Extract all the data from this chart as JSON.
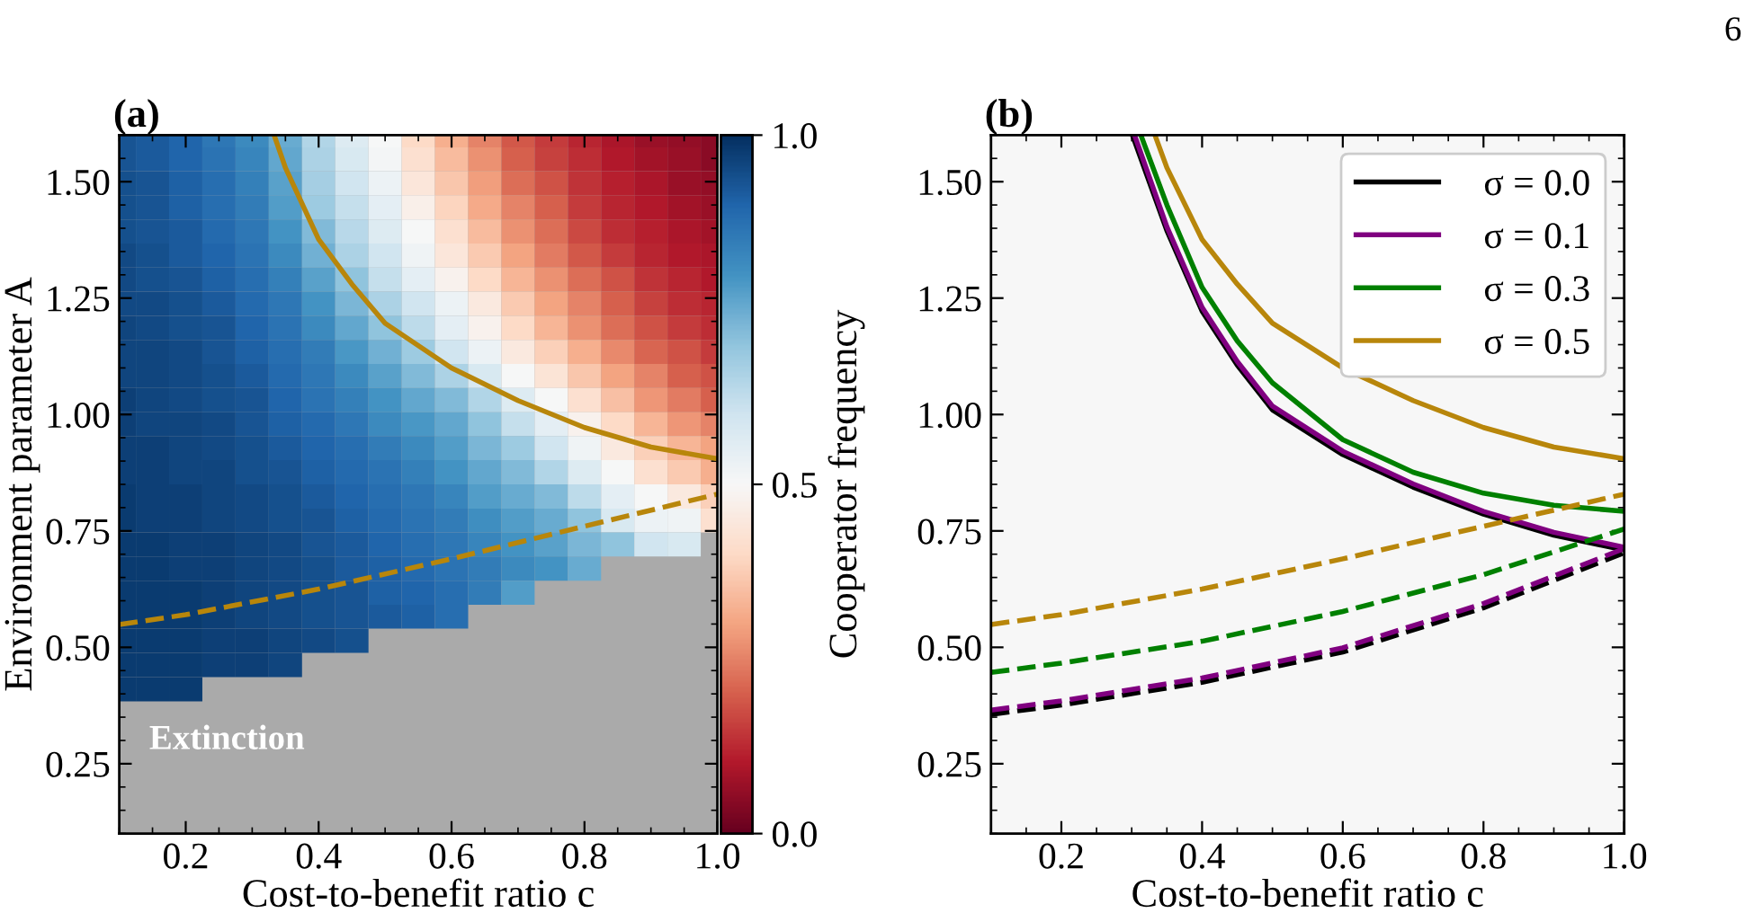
{
  "chart_data": [
    {
      "type": "heatmap",
      "title": "(a)",
      "xlabel": "Cost-to-benefit ratio c",
      "ylabel": "Environment parameter A",
      "clabel": "Cooperator frequency",
      "x": [
        0.1125,
        0.15,
        0.2,
        0.25,
        0.3,
        0.35,
        0.4,
        0.45,
        0.5,
        0.55,
        0.6,
        0.65,
        0.7,
        0.75,
        0.8,
        0.85,
        0.9,
        0.95,
        0.9875
      ],
      "y": [
        1.587,
        1.548,
        1.497,
        1.445,
        1.393,
        1.341,
        1.29,
        1.238,
        1.186,
        1.134,
        1.083,
        1.031,
        0.979,
        0.928,
        0.876,
        0.824,
        0.772,
        0.721,
        0.669,
        0.617,
        0.566,
        0.514,
        0.462,
        0.41
      ],
      "cells": [
        [
          0.93,
          0.92,
          0.9,
          0.86,
          0.82,
          0.75,
          0.65,
          0.57,
          0.5,
          0.4,
          0.32,
          0.25,
          0.19,
          0.15,
          0.12,
          0.09,
          0.07,
          0.06,
          0.05
        ],
        [
          0.93,
          0.92,
          0.9,
          0.87,
          0.83,
          0.76,
          0.66,
          0.58,
          0.51,
          0.42,
          0.34,
          0.27,
          0.2,
          0.16,
          0.13,
          0.1,
          0.08,
          0.07,
          0.05
        ],
        [
          0.94,
          0.93,
          0.91,
          0.88,
          0.84,
          0.77,
          0.67,
          0.6,
          0.53,
          0.44,
          0.36,
          0.29,
          0.22,
          0.18,
          0.14,
          0.11,
          0.09,
          0.07,
          0.06
        ],
        [
          0.94,
          0.93,
          0.91,
          0.88,
          0.85,
          0.78,
          0.68,
          0.62,
          0.55,
          0.47,
          0.39,
          0.31,
          0.25,
          0.2,
          0.15,
          0.12,
          0.1,
          0.08,
          0.07
        ],
        [
          0.94,
          0.93,
          0.92,
          0.89,
          0.86,
          0.8,
          0.72,
          0.64,
          0.57,
          0.5,
          0.42,
          0.34,
          0.27,
          0.22,
          0.17,
          0.13,
          0.11,
          0.09,
          0.08
        ],
        [
          0.95,
          0.94,
          0.92,
          0.9,
          0.87,
          0.82,
          0.74,
          0.66,
          0.6,
          0.52,
          0.44,
          0.37,
          0.3,
          0.24,
          0.19,
          0.15,
          0.12,
          0.1,
          0.09
        ],
        [
          0.95,
          0.94,
          0.93,
          0.91,
          0.88,
          0.84,
          0.77,
          0.7,
          0.62,
          0.55,
          0.48,
          0.4,
          0.33,
          0.27,
          0.22,
          0.18,
          0.14,
          0.12,
          0.1
        ],
        [
          0.95,
          0.95,
          0.94,
          0.92,
          0.89,
          0.86,
          0.8,
          0.73,
          0.66,
          0.6,
          0.53,
          0.45,
          0.37,
          0.3,
          0.25,
          0.2,
          0.16,
          0.13,
          0.12
        ],
        [
          0.96,
          0.95,
          0.94,
          0.93,
          0.9,
          0.87,
          0.82,
          0.76,
          0.7,
          0.63,
          0.55,
          0.48,
          0.4,
          0.33,
          0.27,
          0.22,
          0.18,
          0.15,
          0.13
        ],
        [
          0.96,
          0.96,
          0.95,
          0.93,
          0.91,
          0.88,
          0.85,
          0.79,
          0.74,
          0.68,
          0.6,
          0.53,
          0.45,
          0.38,
          0.32,
          0.26,
          0.21,
          0.18,
          0.15
        ],
        [
          0.96,
          0.96,
          0.95,
          0.94,
          0.92,
          0.89,
          0.86,
          0.82,
          0.77,
          0.72,
          0.66,
          0.58,
          0.5,
          0.43,
          0.36,
          0.3,
          0.25,
          0.2,
          0.18
        ],
        [
          0.97,
          0.96,
          0.95,
          0.94,
          0.93,
          0.9,
          0.87,
          0.84,
          0.8,
          0.76,
          0.72,
          0.65,
          0.57,
          0.5,
          0.42,
          0.35,
          0.28,
          0.24,
          0.2
        ],
        [
          0.97,
          0.96,
          0.96,
          0.95,
          0.93,
          0.91,
          0.89,
          0.86,
          0.82,
          0.79,
          0.76,
          0.7,
          0.62,
          0.55,
          0.48,
          0.4,
          0.33,
          0.28,
          0.25
        ],
        [
          0.97,
          0.97,
          0.96,
          0.95,
          0.94,
          0.92,
          0.9,
          0.88,
          0.85,
          0.82,
          0.78,
          0.73,
          0.68,
          0.6,
          0.52,
          0.45,
          0.38,
          0.33,
          0.3
        ],
        [
          0.97,
          0.97,
          0.96,
          0.96,
          0.94,
          0.93,
          0.91,
          0.89,
          0.87,
          0.84,
          0.8,
          0.76,
          0.72,
          0.65,
          0.57,
          0.5,
          0.42,
          0.37,
          0.32
        ],
        [
          0.98,
          0.97,
          0.97,
          0.96,
          0.95,
          0.94,
          0.92,
          0.9,
          0.88,
          0.86,
          0.83,
          0.78,
          0.75,
          0.72,
          0.63,
          0.55,
          0.5,
          0.45,
          0.38
        ],
        [
          0.98,
          0.97,
          0.97,
          0.96,
          0.95,
          0.94,
          0.93,
          0.91,
          0.89,
          0.87,
          0.85,
          0.81,
          0.78,
          0.75,
          0.7,
          0.58,
          0.53,
          0.52,
          0.42
        ],
        [
          0.98,
          0.98,
          0.97,
          0.97,
          0.96,
          0.95,
          0.93,
          0.92,
          0.9,
          0.88,
          0.86,
          0.83,
          0.8,
          0.77,
          0.73,
          0.7,
          0.6,
          0.58,
          null
        ],
        [
          0.98,
          0.98,
          0.97,
          0.97,
          0.96,
          0.95,
          0.94,
          0.92,
          0.91,
          0.89,
          0.87,
          0.85,
          0.82,
          0.8,
          0.75,
          null,
          null,
          null,
          null
        ],
        [
          0.98,
          0.98,
          0.98,
          0.97,
          0.96,
          0.95,
          0.94,
          0.93,
          0.91,
          0.9,
          0.88,
          0.85,
          0.78,
          null,
          null,
          null,
          null,
          null,
          null
        ],
        [
          0.98,
          0.98,
          0.98,
          0.97,
          0.96,
          0.95,
          0.94,
          0.93,
          0.92,
          0.91,
          0.88,
          null,
          null,
          null,
          null,
          null,
          null,
          null,
          null
        ],
        [
          0.98,
          0.98,
          0.98,
          0.97,
          0.97,
          0.96,
          0.95,
          0.94,
          null,
          null,
          null,
          null,
          null,
          null,
          null,
          null,
          null,
          null,
          null
        ],
        [
          0.98,
          0.98,
          0.98,
          0.97,
          0.97,
          0.96,
          null,
          null,
          null,
          null,
          null,
          null,
          null,
          null,
          null,
          null,
          null,
          null,
          null
        ],
        [
          0.98,
          0.98,
          0.98,
          null,
          null,
          null,
          null,
          null,
          null,
          null,
          null,
          null,
          null,
          null,
          null,
          null,
          null,
          null,
          null
        ]
      ],
      "clim": [
        0,
        1
      ],
      "cticks": [
        {
          "value": 0,
          "label": "0.0"
        },
        {
          "value": 0.5,
          "label": "0.5"
        },
        {
          "value": 1,
          "label": "1.0"
        }
      ],
      "xlim": [
        0.1,
        1.0
      ],
      "xticks": [
        0.2,
        0.4,
        0.6,
        0.8,
        {
          "value": 1.0,
          "label": "1.0"
        }
      ],
      "ylim": [
        0.1,
        1.6
      ],
      "yticks": [
        0.25,
        {
          "value": 0.5,
          "label": "0.50"
        },
        0.75,
        {
          "value": 1.0,
          "label": "1.00"
        },
        1.25,
        {
          "value": 1.5,
          "label": "1.50"
        }
      ],
      "series": [
        {
          "type": "line",
          "color": "#b8860b",
          "line_style": "solid",
          "x": [
            0.333,
            0.35,
            0.4,
            0.45,
            0.5,
            0.6,
            0.7,
            0.8,
            0.9,
            1.0
          ],
          "values": [
            1.6,
            1.53,
            1.376,
            1.28,
            1.196,
            1.1,
            1.03,
            0.972,
            0.93,
            0.905
          ]
        },
        {
          "type": "line",
          "color": "#b8860b",
          "line_style": "dashed",
          "x": [
            0.1,
            0.2,
            0.4,
            0.6,
            0.8,
            1.0
          ],
          "values": [
            0.549,
            0.57,
            0.625,
            0.69,
            0.76,
            0.829
          ]
        }
      ],
      "annotations": [
        "Extinction"
      ],
      "grid": false
    },
    {
      "type": "line",
      "title": "(b)",
      "xlabel": "Cost-to-benefit ratio c",
      "xlim": [
        0.1,
        1.0
      ],
      "xticks": [
        0.2,
        0.4,
        0.6,
        0.8,
        {
          "value": 1.0,
          "label": "1.0"
        }
      ],
      "ylim": [
        0.1,
        1.6
      ],
      "yticks": [
        0.25,
        {
          "value": 0.5,
          "label": "0.50"
        },
        0.75,
        {
          "value": 1.0,
          "label": "1.00"
        },
        1.25,
        {
          "value": 1.5,
          "label": "1.50"
        }
      ],
      "series": [
        {
          "name": "σ = 0.0",
          "color": "#000000",
          "line_style": "solid",
          "x": [
            0.301,
            0.35,
            0.4,
            0.45,
            0.5,
            0.6,
            0.7,
            0.8,
            0.9,
            1.0
          ],
          "values": [
            1.6,
            1.395,
            1.222,
            1.106,
            1.01,
            0.914,
            0.844,
            0.786,
            0.741,
            0.709
          ]
        },
        {
          "name": "σ = 0.1",
          "color": "#800080",
          "line_style": "solid",
          "x": [
            0.304,
            0.35,
            0.4,
            0.45,
            0.5,
            0.6,
            0.7,
            0.8,
            0.9,
            1.0
          ],
          "values": [
            1.6,
            1.403,
            1.23,
            1.114,
            1.018,
            0.921,
            0.851,
            0.792,
            0.747,
            0.715
          ]
        },
        {
          "name": "σ = 0.3",
          "color": "#008000",
          "line_style": "solid",
          "x": [
            0.313,
            0.35,
            0.4,
            0.45,
            0.5,
            0.6,
            0.7,
            0.8,
            0.9,
            1.0
          ],
          "values": [
            1.6,
            1.45,
            1.273,
            1.158,
            1.068,
            0.946,
            0.876,
            0.831,
            0.805,
            0.792
          ]
        },
        {
          "name": "σ = 0.5",
          "color": "#b8860b",
          "line_style": "solid",
          "x": [
            0.333,
            0.35,
            0.4,
            0.45,
            0.5,
            0.6,
            0.7,
            0.8,
            0.9,
            1.0
          ],
          "values": [
            1.6,
            1.53,
            1.376,
            1.28,
            1.196,
            1.1,
            1.03,
            0.972,
            0.93,
            0.905
          ]
        },
        {
          "color": "#000000",
          "line_style": "dashed",
          "x": [
            0.1,
            0.2,
            0.4,
            0.6,
            0.8,
            1.0
          ],
          "values": [
            0.356,
            0.376,
            0.425,
            0.49,
            0.585,
            0.703
          ]
        },
        {
          "color": "#800080",
          "line_style": "dashed",
          "x": [
            0.1,
            0.2,
            0.4,
            0.6,
            0.8,
            1.0
          ],
          "values": [
            0.365,
            0.385,
            0.434,
            0.499,
            0.594,
            0.712
          ]
        },
        {
          "color": "#008000",
          "line_style": "dashed",
          "x": [
            0.1,
            0.2,
            0.4,
            0.6,
            0.8,
            1.0
          ],
          "values": [
            0.446,
            0.466,
            0.513,
            0.577,
            0.656,
            0.754
          ]
        },
        {
          "color": "#b8860b",
          "line_style": "dashed",
          "x": [
            0.1,
            0.2,
            0.4,
            0.6,
            0.8,
            1.0
          ],
          "values": [
            0.549,
            0.57,
            0.625,
            0.69,
            0.76,
            0.829
          ]
        }
      ],
      "legend": "top right",
      "grid": false,
      "annotations": [
        "6"
      ]
    }
  ]
}
